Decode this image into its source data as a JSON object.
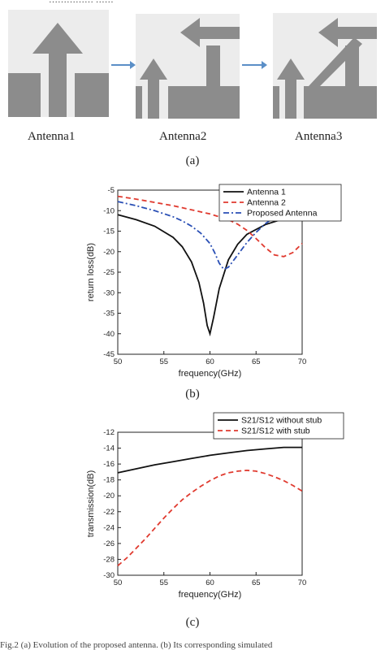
{
  "figure": {
    "top_caption_fragment": "…………… ……",
    "caption": "Fig.2 (a) Evolution of the proposed antenna. (b) Its corresponding simulated",
    "panel_a": {
      "label": "(a)",
      "antennas": [
        "Antenna1",
        "Antenna2",
        "Antenna3"
      ]
    },
    "panel_b_label": "(b)",
    "panel_c_label": "(c)"
  },
  "colors": {
    "antenna_bg": "#ececec",
    "antenna_metal": "#8c8c8c",
    "arrow": "#5b8fc7",
    "series_black": "#111111",
    "series_red": "#e03a2f",
    "series_blue": "#2a4fb5"
  },
  "chart_data": [
    {
      "type": "line",
      "title": "",
      "xlabel": "frequency(GHz)",
      "ylabel": "return loss(dB)",
      "xlim": [
        50,
        70
      ],
      "ylim": [
        -45,
        -5
      ],
      "xticks": [
        50,
        55,
        60,
        65,
        70
      ],
      "yticks": [
        -5,
        -10,
        -15,
        -20,
        -25,
        -30,
        -35,
        -40,
        -45
      ],
      "grid": false,
      "legend": "top-right",
      "series": [
        {
          "name": "Antenna 1",
          "style": "solid",
          "x": [
            50,
            52,
            54,
            56,
            57,
            58,
            58.8,
            59.3,
            59.7,
            60,
            60.4,
            61,
            62,
            63,
            64,
            66,
            68,
            70
          ],
          "y": [
            -11,
            -12.2,
            -13.8,
            -16.5,
            -18.8,
            -22.5,
            -27.5,
            -32.5,
            -38,
            -40,
            -36,
            -29,
            -22,
            -18.2,
            -15.8,
            -13.4,
            -12,
            -11
          ]
        },
        {
          "name": "Antenna 2",
          "style": "dash",
          "x": [
            50,
            52,
            54,
            56,
            58,
            60,
            62,
            63,
            64,
            65,
            66,
            67,
            68,
            69,
            70
          ],
          "y": [
            -6.5,
            -7.2,
            -8,
            -8.8,
            -9.8,
            -10.8,
            -12.2,
            -13.3,
            -14.8,
            -16.8,
            -19,
            -20.8,
            -21.2,
            -20.2,
            -18
          ]
        },
        {
          "name": "Proposed Antenna",
          "style": "dashdot",
          "x": [
            50,
            52,
            54,
            56,
            57,
            58,
            59,
            60,
            60.5,
            61,
            61.5,
            62,
            63,
            64,
            65,
            66,
            67,
            68,
            69,
            70
          ],
          "y": [
            -7.8,
            -8.8,
            -10,
            -11.5,
            -12.5,
            -13.8,
            -15.5,
            -18,
            -20.2,
            -22.8,
            -24.3,
            -23.8,
            -20.8,
            -17.8,
            -15.3,
            -13.2,
            -11.6,
            -10.6,
            -10.1,
            -9.8
          ]
        }
      ]
    },
    {
      "type": "line",
      "title": "",
      "xlabel": "frequency(GHz)",
      "ylabel": "transmission(dB)",
      "xlim": [
        50,
        70
      ],
      "ylim": [
        -30,
        -12
      ],
      "xticks": [
        50,
        55,
        60,
        65,
        70
      ],
      "yticks": [
        -12,
        -14,
        -16,
        -18,
        -20,
        -22,
        -24,
        -26,
        -28,
        -30
      ],
      "grid": false,
      "legend": "top-right",
      "series": [
        {
          "name": "S21/S12 without stub",
          "style": "solid",
          "x": [
            50,
            52,
            54,
            56,
            58,
            60,
            62,
            64,
            66,
            68,
            70
          ],
          "y": [
            -17.1,
            -16.6,
            -16.1,
            -15.7,
            -15.3,
            -14.9,
            -14.6,
            -14.3,
            -14.1,
            -13.9,
            -13.9
          ]
        },
        {
          "name": "S21/S12 with stub",
          "style": "dash",
          "x": [
            50,
            51,
            52,
            53,
            54,
            55,
            56,
            57,
            58,
            59,
            60,
            61,
            62,
            63,
            64,
            65,
            66,
            67,
            68,
            69,
            70
          ],
          "y": [
            -28.8,
            -27.8,
            -26.6,
            -25.4,
            -24.1,
            -22.8,
            -21.6,
            -20.5,
            -19.6,
            -18.8,
            -18.1,
            -17.5,
            -17.1,
            -16.9,
            -16.8,
            -16.9,
            -17.2,
            -17.6,
            -18.1,
            -18.7,
            -19.4
          ]
        }
      ]
    }
  ]
}
